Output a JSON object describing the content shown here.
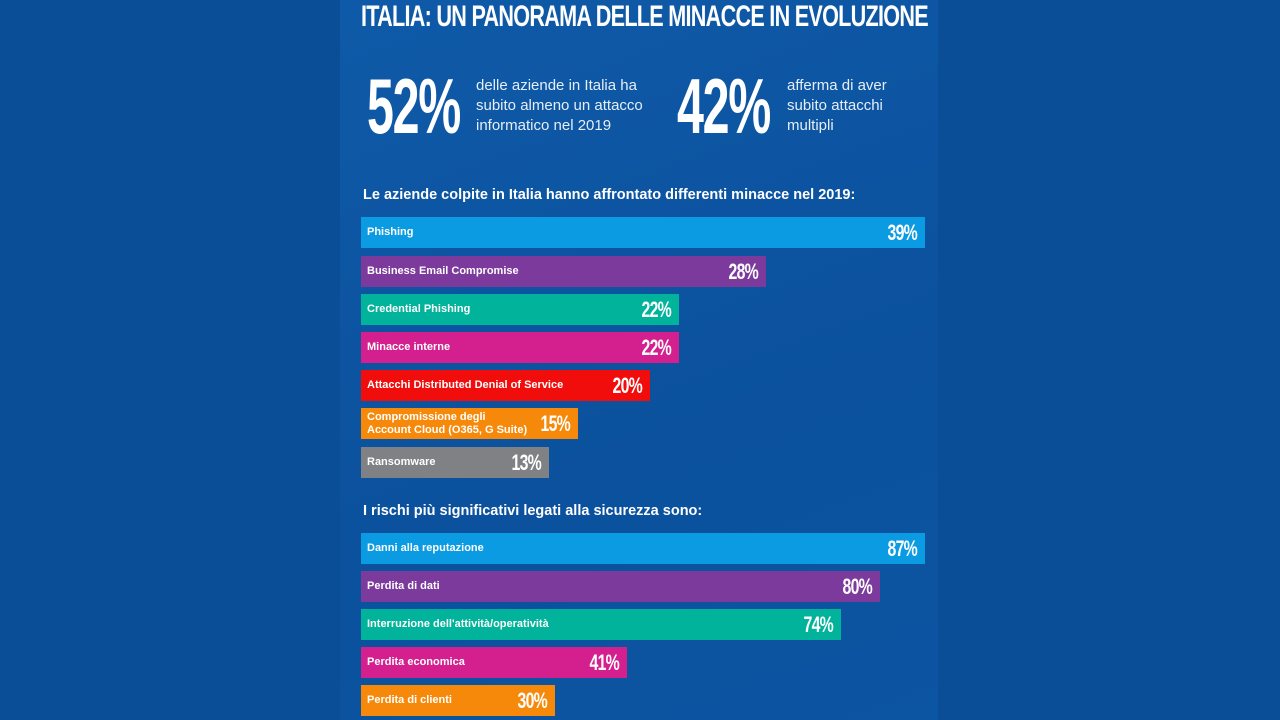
{
  "title": "ITALIA: UN PANORAMA DELLE MINACCE IN EVOLUZIONE",
  "stats": [
    {
      "value": "52%",
      "text": "delle aziende in Italia ha subito almeno un attacco informatico nel 2019"
    },
    {
      "value": "42%",
      "text": "afferma di aver subito attacchi multipli"
    }
  ],
  "chart_data": [
    {
      "type": "bar",
      "title": "Le aziende colpite in Italia hanno affrontato differenti minacce nel 2019:",
      "categories": [
        "Phishing",
        "Business Email Compromise",
        "Credential Phishing",
        "Minacce interne",
        "Attacchi Distributed Denial of Service",
        "Compromissione degli Account Cloud (O365, G Suite)",
        "Ransomware"
      ],
      "values": [
        39,
        28,
        22,
        22,
        20,
        15,
        13
      ],
      "labels": [
        "39%",
        "28%",
        "22%",
        "22%",
        "20%",
        "15%",
        "13%"
      ],
      "colors": [
        "#0a9be3",
        "#7b3a9c",
        "#00b39a",
        "#d41f8e",
        "#f20d0d",
        "#f7890a",
        "#7f8185"
      ],
      "orientation": "horizontal"
    },
    {
      "type": "bar",
      "title": "I rischi più significativi legati alla sicurezza sono:",
      "categories": [
        "Danni alla reputazione",
        "Perdita di dati",
        "Interruzione dell'attività/operatività",
        "Perdita economica",
        "Perdita di clienti"
      ],
      "values": [
        87,
        80,
        74,
        41,
        30
      ],
      "labels": [
        "87%",
        "80%",
        "74%",
        "41%",
        "30%"
      ],
      "colors": [
        "#0a9be3",
        "#7b3a9c",
        "#00b39a",
        "#d41f8e",
        "#f7890a"
      ],
      "orientation": "horizontal"
    }
  ]
}
